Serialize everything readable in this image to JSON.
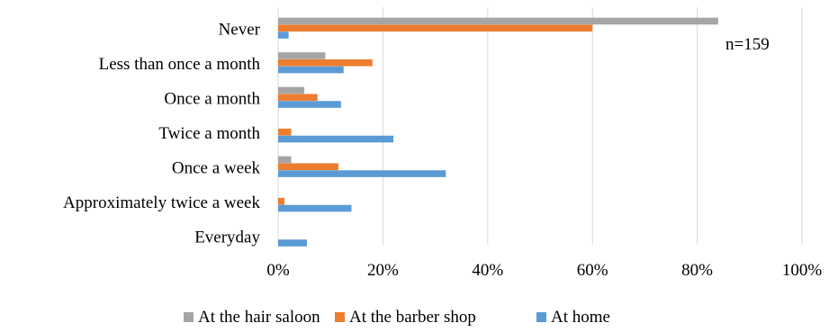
{
  "chart_data": {
    "type": "bar",
    "orientation": "horizontal",
    "categories": [
      "Never",
      "Less than once a month",
      "Once a month",
      "Twice a month",
      "Once a week",
      "Approximately twice a week",
      "Everyday"
    ],
    "series": [
      {
        "name": "At the hair saloon",
        "color": "#a5a5a5",
        "values": [
          84,
          9,
          5,
          0,
          2.5,
          0,
          0
        ]
      },
      {
        "name": "At the barber shop",
        "color": "#ed7d31",
        "values": [
          60,
          18,
          7.5,
          2.5,
          11.5,
          1.2,
          0
        ]
      },
      {
        "name": "At home",
        "color": "#5b9bd5",
        "values": [
          2,
          12.5,
          12,
          22,
          32,
          14,
          5.5
        ]
      }
    ],
    "x_ticks": [
      "0%",
      "20%",
      "40%",
      "60%",
      "80%",
      "100%"
    ],
    "xlim": [
      0,
      100
    ],
    "annotation": "n=159",
    "grid": true,
    "legend_position": "bottom"
  }
}
